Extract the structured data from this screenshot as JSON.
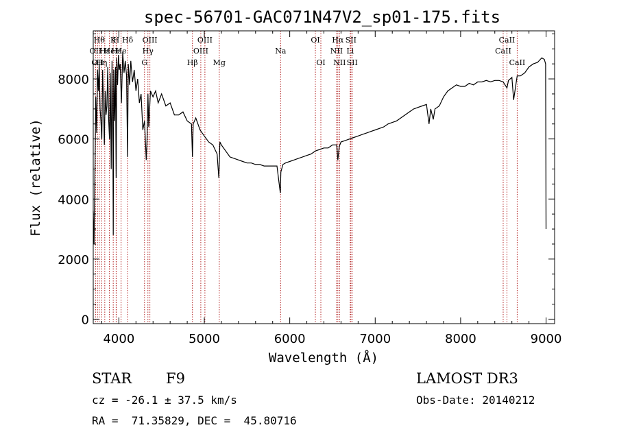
{
  "chart_data": {
    "type": "line",
    "title": "spec-56701-GAC071N47V2_sp01-175.fits",
    "xlabel": "Wavelength (Å)",
    "ylabel": "Flux (relative)",
    "xlim": [
      3700,
      9100
    ],
    "ylim": [
      -150,
      9600
    ],
    "xticks": [
      4000,
      5000,
      6000,
      7000,
      8000,
      9000
    ],
    "yticks": [
      0,
      2000,
      4000,
      6000,
      8000
    ],
    "grid": false,
    "colors": {
      "spectrum": "#000000",
      "line_markers": "#b22222"
    },
    "series": [
      {
        "x": [
          3700,
          3710,
          3720,
          3730,
          3740,
          3750,
          3760,
          3770,
          3780,
          3790,
          3800,
          3810,
          3820,
          3830,
          3840,
          3850,
          3860,
          3870,
          3880,
          3890,
          3900,
          3910,
          3920,
          3930,
          3934,
          3940,
          3950,
          3960,
          3968,
          3975,
          3985,
          3995,
          4005,
          4015,
          4030,
          4045,
          4060,
          4075,
          4090,
          4102,
          4110,
          4125,
          4140,
          4160,
          4180,
          4200,
          4220,
          4240,
          4260,
          4280,
          4300,
          4320,
          4330,
          4340,
          4350,
          4370,
          4400,
          4430,
          4460,
          4500,
          4550,
          4600,
          4650,
          4700,
          4750,
          4800,
          4850,
          4861,
          4870,
          4900,
          4950,
          5000,
          5050,
          5100,
          5150,
          5170,
          5183,
          5200,
          5250,
          5300,
          5350,
          5400,
          5450,
          5500,
          5550,
          5600,
          5650,
          5700,
          5750,
          5800,
          5850,
          5890,
          5896,
          5920,
          5950,
          6000,
          6050,
          6100,
          6150,
          6200,
          6250,
          6300,
          6350,
          6400,
          6450,
          6500,
          6550,
          6563,
          6580,
          6600,
          6650,
          6700,
          6750,
          6800,
          6850,
          6900,
          6950,
          7000,
          7050,
          7100,
          7150,
          7200,
          7250,
          7300,
          7350,
          7400,
          7450,
          7500,
          7550,
          7600,
          7630,
          7650,
          7680,
          7700,
          7750,
          7800,
          7850,
          7900,
          7950,
          8000,
          8050,
          8100,
          8150,
          8200,
          8250,
          8300,
          8350,
          8400,
          8450,
          8498,
          8520,
          8542,
          8560,
          8600,
          8620,
          8662,
          8680,
          8700,
          8750,
          8800,
          8850,
          8900,
          8950,
          8980,
          8995,
          9000
        ],
        "y": [
          3600,
          2500,
          5000,
          7400,
          6200,
          8300,
          7600,
          8500,
          7000,
          6600,
          6000,
          8300,
          7200,
          5800,
          7600,
          6800,
          7100,
          8400,
          6700,
          6000,
          8200,
          5000,
          8600,
          5800,
          2800,
          8300,
          6600,
          8400,
          4700,
          8700,
          7800,
          8800,
          8300,
          8500,
          7200,
          8900,
          8200,
          8600,
          8100,
          5400,
          8500,
          7800,
          8600,
          7900,
          8300,
          7600,
          8000,
          7200,
          7500,
          6300,
          6600,
          5300,
          6000,
          7500,
          6400,
          7600,
          7400,
          7600,
          7200,
          7500,
          7100,
          7200,
          6800,
          6800,
          6900,
          6600,
          6500,
          5400,
          6500,
          6700,
          6300,
          6100,
          5900,
          5800,
          5500,
          4700,
          5900,
          5800,
          5600,
          5400,
          5350,
          5300,
          5250,
          5200,
          5200,
          5150,
          5150,
          5100,
          5100,
          5100,
          5100,
          4200,
          4900,
          5150,
          5200,
          5250,
          5300,
          5350,
          5400,
          5450,
          5500,
          5600,
          5650,
          5700,
          5700,
          5800,
          5800,
          5300,
          5750,
          5900,
          5950,
          6000,
          6050,
          6100,
          6150,
          6200,
          6250,
          6300,
          6350,
          6400,
          6500,
          6550,
          6600,
          6700,
          6800,
          6900,
          7000,
          7050,
          7100,
          7150,
          6500,
          7000,
          6650,
          7000,
          7100,
          7400,
          7600,
          7700,
          7800,
          7750,
          7750,
          7850,
          7800,
          7900,
          7900,
          7950,
          7900,
          7950,
          7950,
          7900,
          7800,
          7700,
          7950,
          8050,
          7300,
          8100,
          8100,
          8100,
          8200,
          8400,
          8500,
          8550,
          8700,
          8650,
          8500,
          3000
        ]
      }
    ],
    "line_markers": [
      {
        "x": 3727,
        "label": "OII",
        "row": 2
      },
      {
        "x": 3750,
        "label": "OII",
        "row": 3
      },
      {
        "x": 3770,
        "label": "Hθ",
        "row": 1
      },
      {
        "x": 3798,
        "label": "Hη",
        "row": 3
      },
      {
        "x": 3835,
        "label": "Hε",
        "row": 2
      },
      {
        "x": 3889,
        "label": "He",
        "row": 2
      },
      {
        "x": 3934,
        "label": "K",
        "row": 1
      },
      {
        "x": 3968,
        "label": "H",
        "row": 1
      },
      {
        "x": 3970,
        "label": "Hε",
        "row": 2
      },
      {
        "x": 4026,
        "label": "He",
        "row": 2
      },
      {
        "x": 4102,
        "label": "Hδ",
        "row": 1
      },
      {
        "x": 4300,
        "label": "G",
        "row": 3
      },
      {
        "x": 4340,
        "label": "Hγ",
        "row": 2
      },
      {
        "x": 4363,
        "label": "OIII",
        "row": 1
      },
      {
        "x": 4861,
        "label": "Hβ",
        "row": 3
      },
      {
        "x": 4959,
        "label": "OIII",
        "row": 2
      },
      {
        "x": 5007,
        "label": "OIII",
        "row": 1
      },
      {
        "x": 5175,
        "label": "Mg",
        "row": 3
      },
      {
        "x": 5893,
        "label": "Na",
        "row": 2
      },
      {
        "x": 6300,
        "label": "OI",
        "row": 1
      },
      {
        "x": 6364,
        "label": "OI",
        "row": 3
      },
      {
        "x": 6548,
        "label": "NII",
        "row": 2
      },
      {
        "x": 6563,
        "label": "Hα",
        "row": 1
      },
      {
        "x": 6583,
        "label": "NII",
        "row": 3
      },
      {
        "x": 6708,
        "label": "Li",
        "row": 2
      },
      {
        "x": 6716,
        "label": "SII",
        "row": 1
      },
      {
        "x": 6731,
        "label": "SII",
        "row": 3
      },
      {
        "x": 8498,
        "label": "CaII",
        "row": 2
      },
      {
        "x": 8542,
        "label": "CaII",
        "row": 1
      },
      {
        "x": 8662,
        "label": "CaII",
        "row": 3
      }
    ]
  },
  "info": {
    "object_class": "STAR",
    "subclass": "F9",
    "survey": "LAMOST DR3",
    "cz": "cz = -26.1 ± 37.5 km/s",
    "obs_date": "Obs-Date: 20140212",
    "coords": "RA =  71.35829, DEC =  45.80716"
  }
}
